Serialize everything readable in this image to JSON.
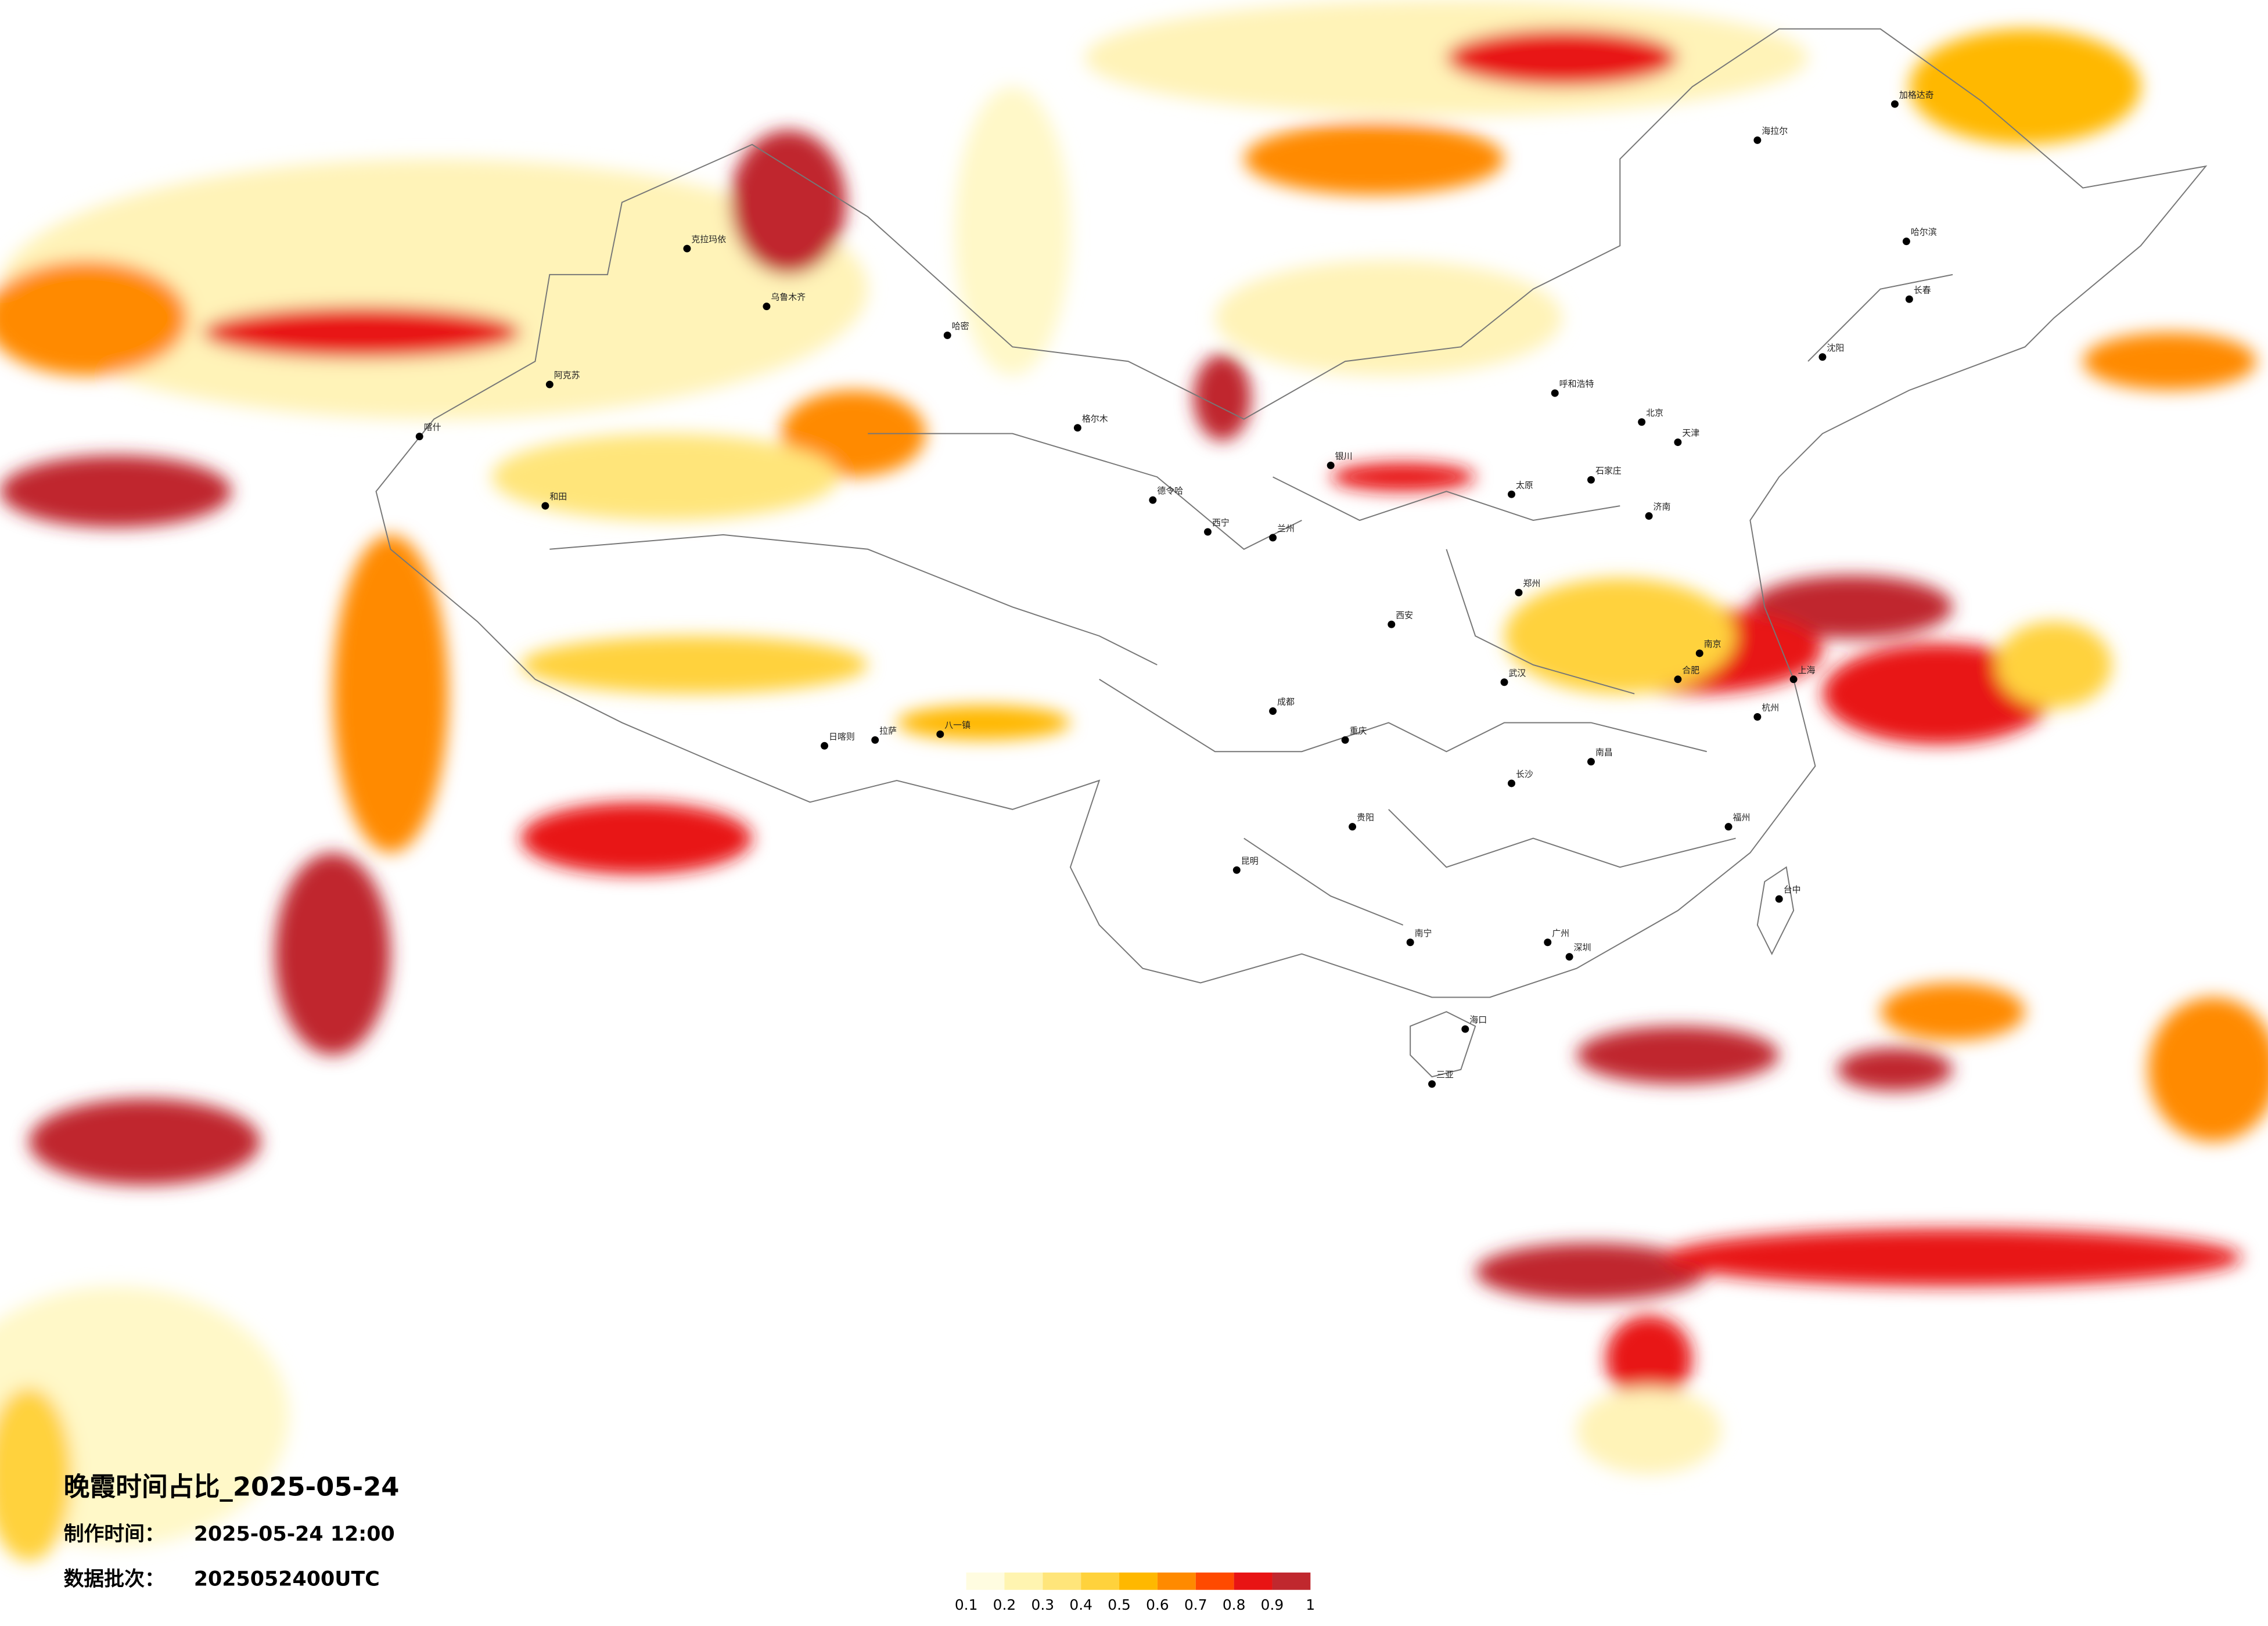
{
  "title": "晚霞时间占比_2025-05-24",
  "info": [
    {
      "label": "制作时间：",
      "value": "2025-05-24 12:00"
    },
    {
      "label": "数据批次：",
      "value": "2025052400UTC"
    }
  ],
  "colorbar": {
    "ticks": [
      0.1,
      0.2,
      0.3,
      0.4,
      0.5,
      0.6,
      0.7,
      0.8,
      0.9,
      1
    ],
    "colors": [
      "#fffce0",
      "#fff4b0",
      "#ffe57a",
      "#ffd23c",
      "#ffb800",
      "#ff8a00",
      "#ff4a00",
      "#e81414",
      "#c0282e"
    ]
  },
  "cities": [
    "克拉玛依",
    "乌鲁木齐",
    "哈密",
    "阿克苏",
    "喀什",
    "和田",
    "格尔木",
    "德令哈",
    "日喀则",
    "八一镇",
    "拉萨",
    "西宁",
    "兰州",
    "银川",
    "呼和浩特",
    "北京",
    "天津",
    "石家庄",
    "太原",
    "济南",
    "郑州",
    "西安",
    "南京",
    "上海",
    "杭州",
    "合肥",
    "武汉",
    "长沙",
    "南昌",
    "福州",
    "台中",
    "广州",
    "深圳",
    "南宁",
    "海口",
    "三亚",
    "贵阳",
    "昆明",
    "成都",
    "重庆",
    "沈阳",
    "长春",
    "哈尔滨",
    "海拉尔",
    "加格达奇"
  ]
}
